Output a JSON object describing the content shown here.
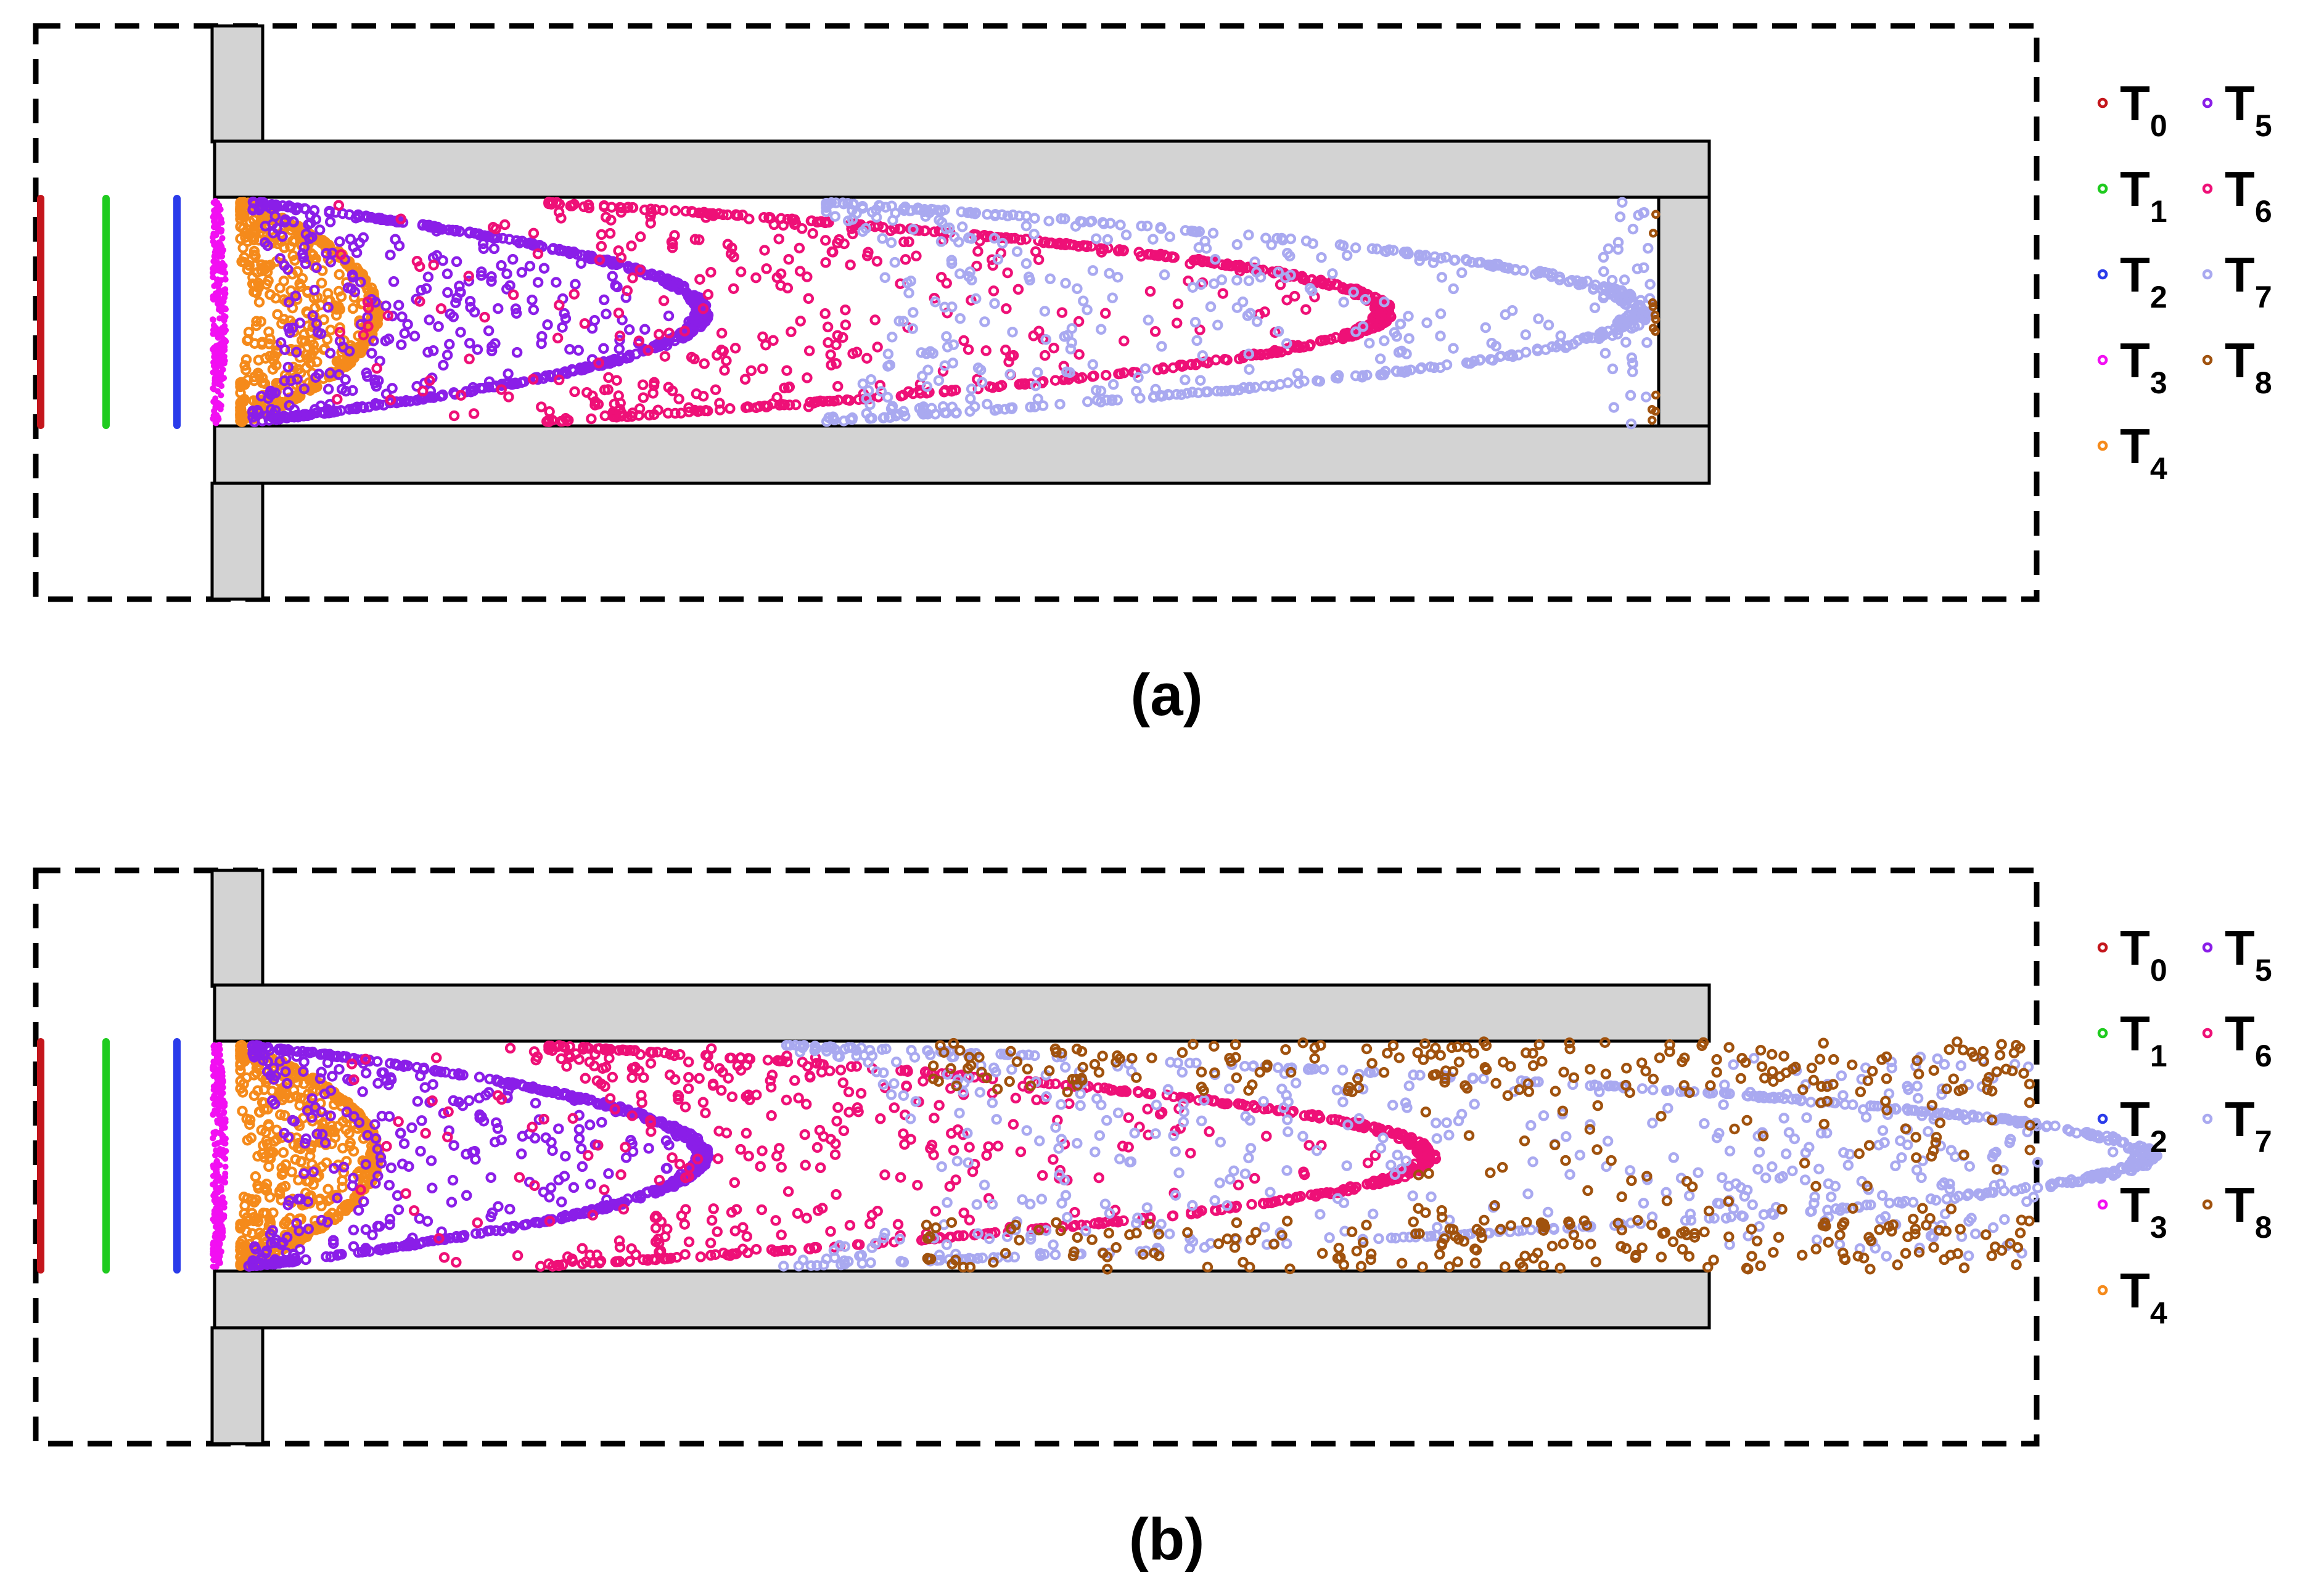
{
  "panels": [
    {
      "id": "a",
      "label": "(a)",
      "front_reaches_outlet": false
    },
    {
      "id": "b",
      "label": "(b)",
      "front_reaches_outlet": true
    }
  ],
  "legend": {
    "entries": [
      {
        "base": "T",
        "sub": "0",
        "color": "#c4161c"
      },
      {
        "base": "T",
        "sub": "1",
        "color": "#1fcb1f"
      },
      {
        "base": "T",
        "sub": "2",
        "color": "#2a3bea"
      },
      {
        "base": "T",
        "sub": "3",
        "color": "#f20ff2"
      },
      {
        "base": "T",
        "sub": "4",
        "color": "#f58a1b"
      },
      {
        "base": "T",
        "sub": "5",
        "color": "#8a1ee8"
      },
      {
        "base": "T",
        "sub": "6",
        "color": "#ee1077"
      },
      {
        "base": "T",
        "sub": "7",
        "color": "#a9a9f0"
      },
      {
        "base": "T",
        "sub": "8",
        "color": "#a0520e"
      }
    ]
  },
  "colors": {
    "wall_fill": "#d3d3d3",
    "wall_stroke": "#000000",
    "domain_border": "#000000"
  }
}
